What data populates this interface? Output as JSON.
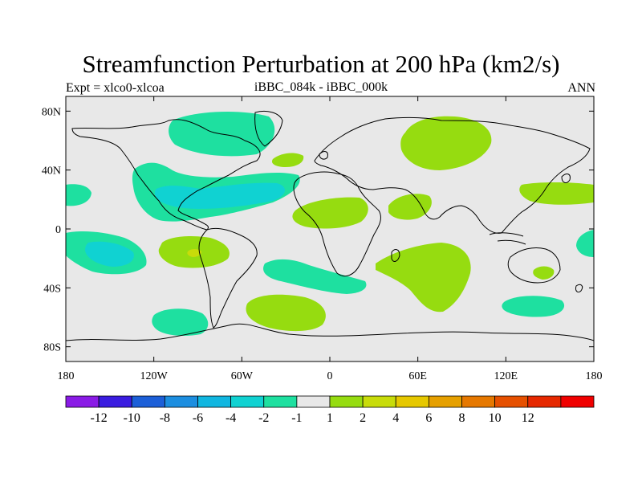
{
  "title": "Streamfunction Perturbation at 200 hPa (km2/s)",
  "subtitle_left": "Expt = xlco0-xlcoa",
  "subtitle_center": "iBBC_084k - iBBC_000k",
  "subtitle_right": "ANN",
  "lat_ticks": [
    "80N",
    "40N",
    "0",
    "40S",
    "80S"
  ],
  "lon_ticks": [
    "180",
    "120W",
    "60W",
    "0",
    "60E",
    "120E",
    "180"
  ],
  "colorbar": {
    "colors": [
      "#8a1be6",
      "#3a1ce0",
      "#1c5fd8",
      "#1c8ee0",
      "#10b6e0",
      "#10d2d2",
      "#1ee0a0",
      "#e8e8e8",
      "#96dc10",
      "#c8dc0a",
      "#e6c800",
      "#e6a000",
      "#e67800",
      "#e65000",
      "#e62800",
      "#f00000"
    ],
    "labels": [
      "-12",
      "-10",
      "-8",
      "-6",
      "-4",
      "-2",
      "-1",
      "1",
      "2",
      "4",
      "6",
      "8",
      "10",
      "12"
    ]
  },
  "chart_data": {
    "type": "heatmap",
    "title": "Streamfunction Perturbation at 200 hPa (km2/s)",
    "variable": "streamfunction perturbation",
    "level_hPa": 200,
    "units": "km2/s",
    "experiment": "xlco0-xlcoa",
    "difference": "iBBC_084k - iBBC_000k",
    "season": "ANN",
    "xlim": [
      -180,
      180
    ],
    "ylim": [
      -90,
      90
    ],
    "contour_levels": [
      -12,
      -10,
      -8,
      -6,
      -4,
      -2,
      -1,
      1,
      2,
      4,
      6,
      8,
      10,
      12
    ],
    "regions": [
      {
        "name": "Arctic Canada / Greenland",
        "level": "-2 to -1"
      },
      {
        "name": "North Atlantic / Caribbean band",
        "level": "-2 to -1"
      },
      {
        "name": "Gulf of Mexico / Caribbean core",
        "level": "-4 to -2"
      },
      {
        "name": "North Pacific east of date line",
        "level": "-2 to -1"
      },
      {
        "name": "Tropical South Pacific",
        "level": "-2 to -1"
      },
      {
        "name": "Tropical South Pacific core",
        "level": "-4 to -2"
      },
      {
        "name": "Eurasia / Arctic",
        "level": "1 to 2"
      },
      {
        "name": "North Atlantic east of Azores",
        "level": "1 to 2"
      },
      {
        "name": "West Africa",
        "level": "1 to 2"
      },
      {
        "name": "East Africa / Arabia",
        "level": "1 to 2"
      },
      {
        "name": "South Indian Ocean",
        "level": "1 to 2"
      },
      {
        "name": "Southeast Pacific",
        "level": "1 to 2"
      },
      {
        "name": "Southeast Pacific core",
        "level": "2 to 4"
      },
      {
        "name": "South Atlantic (40S)",
        "level": "1 to 2"
      },
      {
        "name": "Western Pacific 30N",
        "level": "1 to 2"
      },
      {
        "name": "Dateline 20N",
        "level": "1 to 2"
      },
      {
        "name": "Eastern Australia",
        "level": "1 to 2"
      },
      {
        "name": "South Atlantic band",
        "level": "-2 to -1"
      },
      {
        "name": "Southern Ocean south of Australia",
        "level": "-2 to -1"
      },
      {
        "name": "Southern Ocean southeast Pacific",
        "level": "-2 to -1"
      },
      {
        "name": "Western Pacific south",
        "level": "-2 to -1"
      }
    ]
  }
}
